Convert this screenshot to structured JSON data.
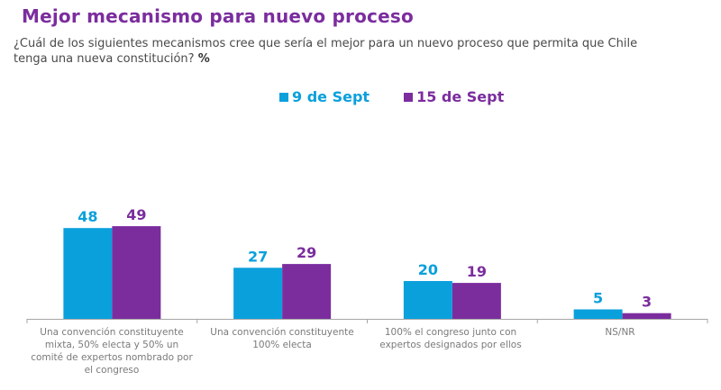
{
  "header": {
    "title": "Mejor mecanismo para nuevo proceso",
    "question": "¿Cuál de los siguientes mecanismos cree que sería el mejor para un nuevo proceso que permita que Chile tenga una nueva constitución?",
    "unit": "%"
  },
  "chart_data": {
    "type": "bar",
    "title": "Mejor mecanismo para nuevo proceso",
    "xlabel": "",
    "ylabel": "",
    "ylim": [
      0,
      60
    ],
    "grid": false,
    "legend_position": "top-center",
    "categories": [
      "Una convención constituyente mixta, 50% electa y 50% un comité de expertos nombrado por el congreso",
      "Una convención constituyente 100% electa",
      "100% el congreso junto con expertos designados por ellos",
      "NS/NR"
    ],
    "series": [
      {
        "name": "9 de Sept",
        "color": "#0aa0dc",
        "values": [
          48,
          27,
          20,
          5
        ]
      },
      {
        "name": "15 de Sept",
        "color": "#7b2d9e",
        "values": [
          49,
          29,
          19,
          3
        ]
      }
    ]
  }
}
